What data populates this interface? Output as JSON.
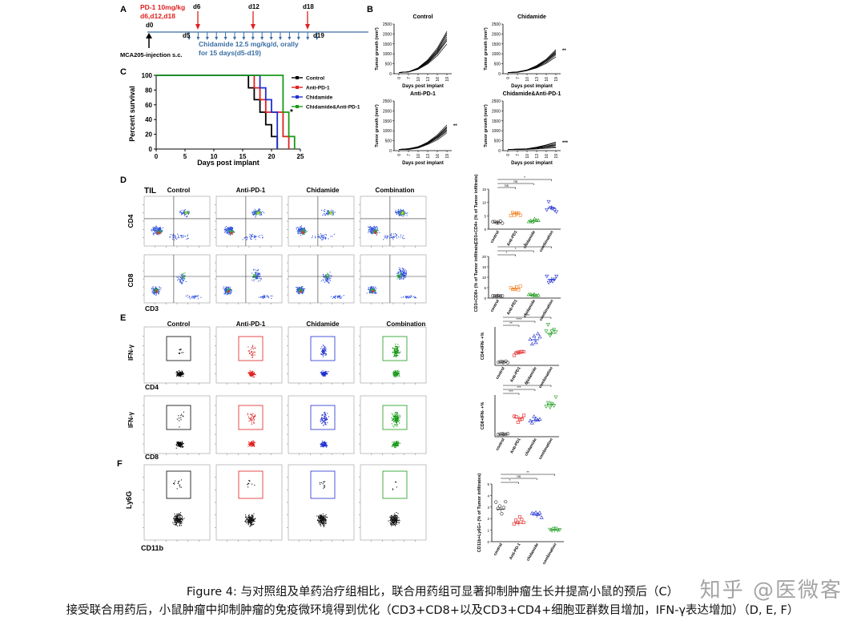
{
  "colors": {
    "control": "#000000",
    "antipd1": "#e02020",
    "chidamide": "#2030d0",
    "combo": "#1a9a1a",
    "timeline": "#3a6ea5",
    "orange": "#f08020"
  },
  "panelA": {
    "letter": "A",
    "pd1": "PD-1 10mg/kg",
    "pd1days": "d6,d12,d18",
    "d0": "d0",
    "d6": "d6",
    "d12": "d12",
    "d18": "d18",
    "d5": "d5",
    "d19": "d19",
    "drug_line1": "Chidamide 12.5 mg/kg/d, orally",
    "drug_line2": "for 15 days(d5-d19)",
    "injection": "MCA205-injection s.c."
  },
  "panelB": {
    "letter": "B",
    "ylabel": "Tumor growth (mm³)",
    "xlabel": "Days post implant",
    "xticks": [
      "0",
      "7",
      "10",
      "13",
      "16",
      "19"
    ],
    "yticks": [
      "0",
      "500",
      "1000",
      "1500",
      "2000",
      "2500"
    ],
    "plots": [
      {
        "title": "Control",
        "sig": "",
        "end": [
          1500,
          1650,
          1750,
          1850,
          1950,
          2050,
          2150
        ]
      },
      {
        "title": "Chidamide",
        "sig": "**",
        "end": [
          850,
          950,
          1000,
          1050,
          1100,
          1150,
          1200
        ]
      },
      {
        "title": "Anti-PD-1",
        "sig": "**",
        "end": [
          900,
          1000,
          1050,
          1100,
          1150,
          1200,
          1300
        ]
      },
      {
        "title": "Chidamide&Anti-PD-1",
        "sig": "***",
        "end": [
          150,
          200,
          250,
          300,
          350,
          400,
          450
        ]
      }
    ]
  },
  "panelC": {
    "letter": "C",
    "ylabel": "Percent survival",
    "xlabel": "Days post implant",
    "xticks": [
      "0",
      "5",
      "10",
      "15",
      "20",
      "25"
    ],
    "yticks": [
      "0",
      "20",
      "40",
      "60",
      "80",
      "100"
    ],
    "sig": "*",
    "legend": [
      "Control",
      "Anti-PD-1",
      "Chidamide",
      "Chidamide&Anti-PD-1"
    ]
  },
  "chart_data": {
    "type": "line",
    "title": "",
    "xlabel": "Days post implant",
    "ylabel": "Percent survival",
    "xlim": [
      0,
      25
    ],
    "ylim": [
      0,
      100
    ],
    "series": [
      {
        "name": "Control",
        "x": [
          0,
          16,
          17,
          18,
          19,
          20,
          21
        ],
        "y": [
          100,
          83,
          67,
          50,
          33,
          17,
          0
        ]
      },
      {
        "name": "Anti-PD-1",
        "x": [
          0,
          17,
          18,
          19,
          22,
          23
        ],
        "y": [
          100,
          83,
          67,
          50,
          17,
          0
        ]
      },
      {
        "name": "Chidamide",
        "x": [
          0,
          18,
          19,
          20,
          21
        ],
        "y": [
          100,
          83,
          67,
          50,
          0
        ]
      },
      {
        "name": "Chidamide&Anti-PD-1",
        "x": [
          0,
          22,
          23,
          24
        ],
        "y": [
          100,
          50,
          17,
          0
        ]
      }
    ]
  },
  "panelD": {
    "letter": "D",
    "til": "TIL",
    "headers": [
      "Control",
      "Anti-PD-1",
      "Chidamide",
      "Combination"
    ],
    "row1": "CD4",
    "row2": "CD8",
    "xaxis": "CD3",
    "dot1": {
      "ylabel": "CD3+CD4+ (% of Tumor infiltrats)",
      "sig": [
        "ns",
        "ns",
        "*"
      ],
      "cats": [
        "control",
        "Anti-PD1",
        "chidamide",
        "combination"
      ],
      "yticks": [
        "0",
        "5",
        "10",
        "15"
      ],
      "means": [
        2.5,
        6,
        3,
        8
      ]
    },
    "dot2": {
      "ylabel": "CD3+CD8+ (% of Tumor infiltrats)",
      "sig": [
        "*",
        "*",
        "**"
      ],
      "cats": [
        "control",
        "Anti-PD1",
        "chidamide",
        "combination"
      ],
      "yticks": [
        "0",
        "5",
        "10",
        "15",
        "20"
      ],
      "means": [
        1,
        4.5,
        1.5,
        9
      ]
    }
  },
  "panelE": {
    "letter": "E",
    "headers": [
      "Control",
      "Anti-PD-1",
      "Chidamide",
      "Combination"
    ],
    "ylabel": "IFN-γ",
    "row1": "CD4",
    "row2": "CD8",
    "dot1": {
      "ylabel": "CD4+IFN- +%",
      "sig": [
        "**",
        "****",
        "****"
      ],
      "cats": [
        "control",
        "Anti-PD1",
        "chidamide",
        "combination"
      ],
      "means": [
        1,
        4,
        8,
        10
      ]
    },
    "dot2": {
      "ylabel": "CD8+IFN- +%",
      "sig": [
        "***",
        "***",
        "****"
      ],
      "cats": [
        "control",
        "Anti-PD1",
        "chidamide",
        "combination"
      ],
      "means": [
        0.5,
        4,
        3.5,
        7
      ]
    }
  },
  "panelF": {
    "letter": "F",
    "ylabel": "Ly6G",
    "xlabel": "CD11b",
    "dot": {
      "ylabel": "CD11b+Ly6G+ (% of Tumor infiltrates)",
      "sig": [
        "*",
        "ns",
        "**"
      ],
      "cats": [
        "control",
        "Anti-PD-1",
        "chidamide",
        "combination"
      ],
      "yticks": [
        "0",
        "1",
        "2",
        "3",
        "4",
        "5"
      ],
      "means": [
        2.8,
        1.6,
        2.3,
        1.0
      ]
    }
  },
  "caption": {
    "line1": "Figure 4: 与对照组及单药治疗组相比，联合用药组可显著抑制肿瘤生长并提高小鼠的预后（C）",
    "line2": "接受联合用药后，小鼠肿瘤中抑制肿瘤的免疫微环境得到优化（CD3+CD8+以及CD3+CD4+细胞亚群数目增加，IFN-γ表达增加）（D, E, F）"
  },
  "watermark": "知乎 @医微客"
}
